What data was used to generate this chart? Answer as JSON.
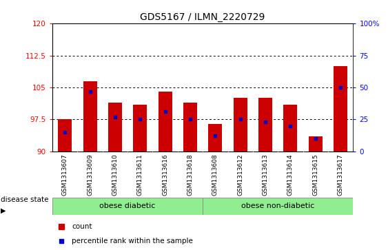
{
  "title": "GDS5167 / ILMN_2220729",
  "samples": [
    "GSM1313607",
    "GSM1313609",
    "GSM1313610",
    "GSM1313611",
    "GSM1313616",
    "GSM1313618",
    "GSM1313608",
    "GSM1313612",
    "GSM1313613",
    "GSM1313614",
    "GSM1313615",
    "GSM1313617"
  ],
  "bar_heights": [
    97.5,
    106.5,
    101.5,
    101.0,
    104.0,
    101.5,
    96.5,
    102.5,
    102.5,
    101.0,
    93.5,
    110.0
  ],
  "percentile_ranks": [
    15,
    47,
    27,
    25,
    31,
    25,
    12,
    25,
    23,
    20,
    10,
    50
  ],
  "ylim_left": [
    90,
    120
  ],
  "ylim_right": [
    0,
    100
  ],
  "yticks_left": [
    90,
    97.5,
    105,
    112.5,
    120
  ],
  "yticks_right": [
    0,
    25,
    50,
    75,
    100
  ],
  "ytick_labels_left": [
    "90",
    "97.5",
    "105",
    "112.5",
    "120"
  ],
  "ytick_labels_right": [
    "0",
    "25",
    "50",
    "75",
    "100%"
  ],
  "bar_color": "#cc0000",
  "dot_color": "#0000cc",
  "baseline": 90,
  "group1_label": "obese diabetic",
  "group2_label": "obese non-diabetic",
  "group1_count": 6,
  "group2_count": 6,
  "group_bg_color": "#90ee90",
  "label_area_bg": "#c8c8c8",
  "disease_state_label": "disease state",
  "legend_count_label": "count",
  "legend_pct_label": "percentile rank within the sample",
  "title_fontsize": 10,
  "tick_fontsize": 7.5,
  "label_fontsize": 6.5,
  "bar_width": 0.55
}
